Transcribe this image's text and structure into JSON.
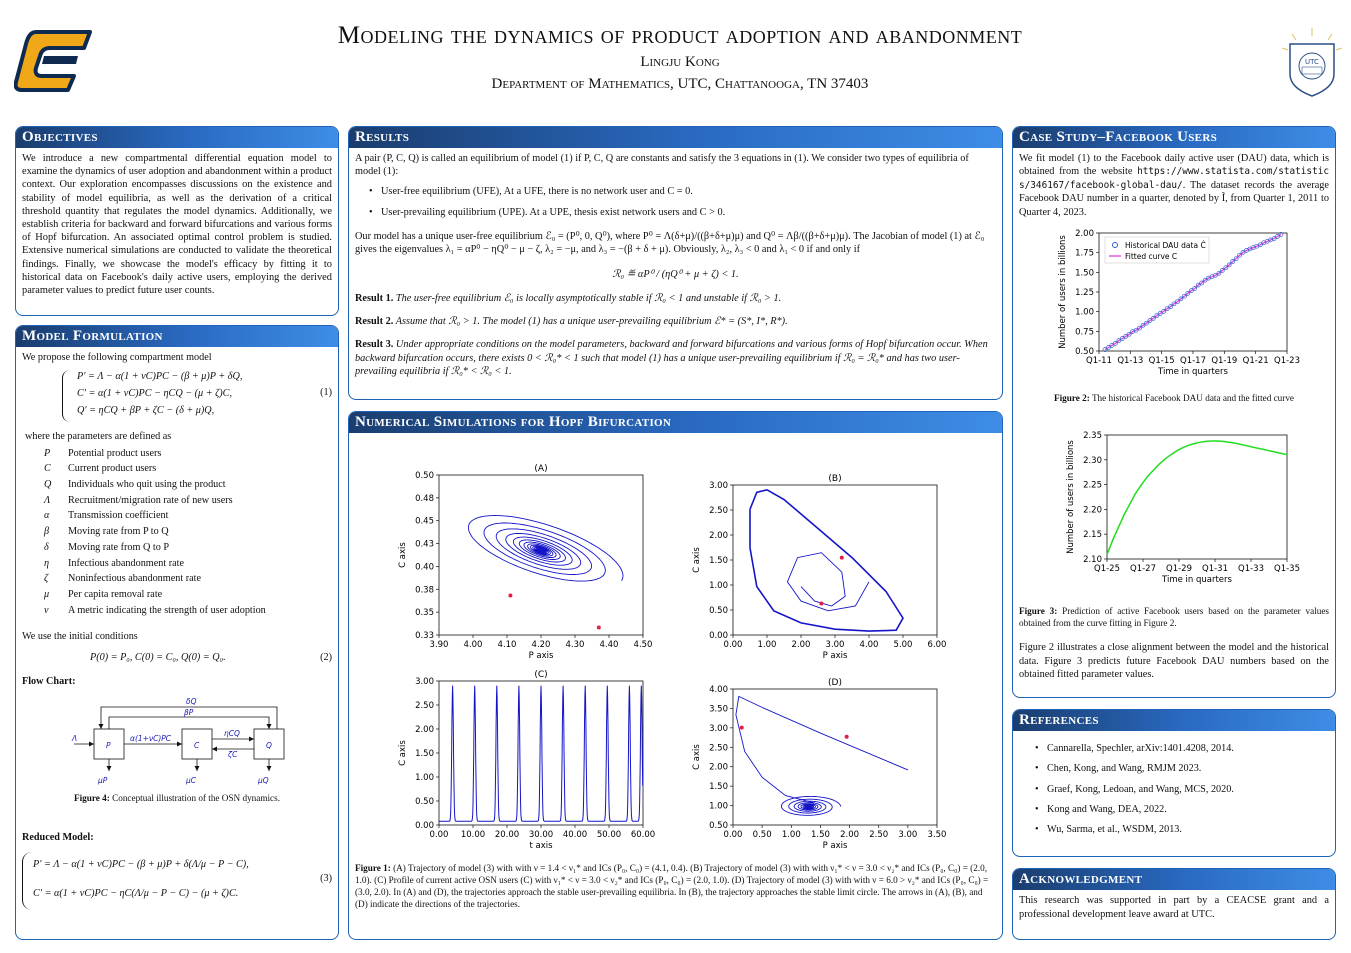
{
  "header": {
    "title": "Modeling the dynamics of product adoption and abandonment",
    "author": "Lingju Kong",
    "department": "Department of Mathematics, UTC, Chattanooga, TN 37403",
    "seal_text": "UTC"
  },
  "objectives": {
    "heading": "Objectives",
    "text": "We introduce a new compartmental differential equation model to examine the dynamics of user adoption and abandonment within a product context. Our exploration encompasses discussions on the existence and stability of model equilibria, as well as the derivation of a critical threshold quantity that regulates the model dynamics. Additionally, we establish criteria for backward and forward bifurcations and various forms of Hopf bifurcation. An associated optimal control problem is studied. Extensive numerical simulations are conducted to validate the theoretical findings. Finally, we showcase the model's efficacy by fitting it to historical data on Facebook's daily active users, employing the derived parameter values to predict future user counts."
  },
  "model": {
    "heading": "Model Formulation",
    "intro": "We propose the following compartment model",
    "eq1_lines": [
      "P′ = Λ − α(1 + νC)PC − (β + μ)P + δQ,",
      "C′ = α(1 + νC)PC − ηCQ − (μ + ζ)C,",
      "Q′ = ηCQ + βP + ζC − (δ + μ)Q,"
    ],
    "eq1_num": "(1)",
    "params_intro": "where the parameters are defined as",
    "params": [
      {
        "sym": "P",
        "desc": "Potential product users"
      },
      {
        "sym": "C",
        "desc": "Current product users"
      },
      {
        "sym": "Q",
        "desc": "Individuals who quit using the product"
      },
      {
        "sym": "Λ",
        "desc": "Recruitment/migration rate of new users"
      },
      {
        "sym": "α",
        "desc": "Transmission coefficient"
      },
      {
        "sym": "β",
        "desc": "Moving rate from P to Q"
      },
      {
        "sym": "δ",
        "desc": "Moving rate from Q to P"
      },
      {
        "sym": "η",
        "desc": "Infectious abandonment rate"
      },
      {
        "sym": "ζ",
        "desc": "Noninfectious abandonment rate"
      },
      {
        "sym": "μ",
        "desc": "Per capita removal rate"
      },
      {
        "sym": "ν",
        "desc": "A metric indicating the strength of user adoption"
      }
    ],
    "init_intro": "We use the initial conditions",
    "eq2": "P(0) = P₀,  C(0) = C₀,  Q(0) = Q₀.",
    "eq2_num": "(2)",
    "flow_heading": "Flow Chart:",
    "flow": {
      "lambda": "Λ",
      "P": "P",
      "C": "C",
      "Q": "Q",
      "PC": "α(1+νC)PC",
      "CQ": "ηCQ",
      "zC": "ζC",
      "bP": "βP",
      "dQ": "δQ",
      "muP": "μP",
      "muC": "μC",
      "muQ": "μQ"
    },
    "fig4_caption_bold": "Figure 4:",
    "fig4_caption": " Conceptual illustration of the OSN dynamics.",
    "reduced_heading": "Reduced Model:",
    "eq3_line1": "P′ = Λ − α(1 + νC)PC − (β + μ)P + δ(Λ/μ − P − C),",
    "eq3_line2": "C′ = α(1 + νC)PC − ηC(Λ/μ − P − C) − (μ + ζ)C.",
    "eq3_num": "(3)"
  },
  "results": {
    "heading": "Results",
    "p1": "A pair (P, C, Q) is called an equilibrium of model (1) if P, C, Q are constants and satisfy the 3 equations in (1). We consider two types of equilibria of model (1):",
    "bullets": [
      "User-free equilibrium (UFE), At a UFE, there is no network user and C = 0.",
      "User-prevailing equilibrium (UPE). At a UPE, thesis exist network users and C > 0."
    ],
    "p2": "Our model has a unique user-free equilibrium ℰ₀ = (P⁰, 0, Q⁰), where P⁰ = Λ(δ+μ)/((β+δ+μ)μ) and Q⁰ = Λβ/((β+δ+μ)μ). The Jacobian of model (1) at ℰ₀ gives the eigenvalues λ₁ = αP⁰ − ηQ⁰ − μ − ζ, λ₂ = −μ, and λ₃ = −(β + δ + μ). Obviously, λ₂, λ₃ < 0 and λ₁ < 0 if and only if",
    "r0": "ℛ₀ ≝ αP⁰ / (ηQ⁰ + μ + ζ) < 1.",
    "res1_bold": "Result 1.",
    "res1": " The user-free equilibrium ℰ₀ is locally asymptotically stable if ℛ₀ < 1 and unstable if ℛ₀ > 1.",
    "res2_bold": "Result 2.",
    "res2": " Assume that ℛ₀ > 1. The model (1) has a unique user-prevailing equilibrium ℰ* = (S*, I*, R*).",
    "res3_bold": "Result 3.",
    "res3": " Under appropriate conditions on the model parameters, backward and forward bifurcations and various forms of Hopf bifurcation occur. When backward bifurcation occurs, there exists 0 < ℛ₀* < 1 such that model (1) has a unique user-prevailing equilibrium if ℛ₀ = ℛ₀* and has two user-prevailing equilibria if ℛ₀* < ℛ₀ < 1."
  },
  "numerical": {
    "heading": "Numerical Simulations for Hopf Bifurcation",
    "fig1_caption_bold": "Figure 1:",
    "fig1_caption": " (A) Trajectory of model (3) with with ν = 1.4 < ν₁* and ICs (P₀, C₀) = (4.1, 0.4). (B) Trajectory of model (3) with with ν₁* < ν = 3.0 < ν₂* and ICs (P₀, C₀) = (2.0, 1.0). (C) Profile of current active OSN users (C) with ν₁* < ν = 3.0 < ν₂* and ICs (P₀, C₀) = (2.0, 1.0). (D) Trajectory of model (3) with with ν = 6.0 > ν₂* and ICs (P₀, C₀) = (3.0, 2.0). In (A) and (D), the trajectories approach the stable user-prevailing equilibria. In (B), the trajectory approaches the stable limit circle. The arrows in (A), (B), and (D) indicate the directions of the trajectories."
  },
  "case": {
    "heading": "Case Study–Facebook Users",
    "text_before": "We fit model (1) to the Facebook daily active user (DAU) data, which is obtained from the website ",
    "url": "https://www.statista.com/statistics/346167/facebook-global-dau/",
    "text_after": ". The dataset records the average Facebook DAU number in a quarter, denoted by Ĩ, from Quarter 1, 2011 to Quarter 4, 2023.",
    "fig2_caption_bold": "Figure 2:",
    "fig2_caption": " The historical Facebook DAU data and the fitted curve",
    "fig3_caption_bold": "Figure 3:",
    "fig3_caption": " Prediction of active Facebook users based on the parameter values obtained from the curve fitting in Figure 2.",
    "summary": "Figure 2 illustrates a close alignment between the model and the historical data. Figure 3 predicts future Facebook DAU numbers based on the obtained fitted parameter values."
  },
  "references": {
    "heading": "References",
    "items": [
      "Cannarella, Spechler, arXiv:1401.4208, 2014.",
      "Chen, Kong, and Wang, RMJM 2023.",
      "Graef, Kong, Ledoan, and Wang, MCS, 2020.",
      "Kong and Wang, DEA, 2022.",
      "Wu, Sarma, et al., WSDM, 2013."
    ]
  },
  "ack": {
    "heading": "Acknowledgment",
    "text": "This research was supported in part by a CEACSE grant and a professional development leave award at UTC."
  },
  "chart_data": [
    {
      "type": "line",
      "id": "A",
      "title": "(A)",
      "xlabel": "P axis",
      "ylabel": "C axis",
      "xlim": [
        3.9,
        4.5
      ],
      "ylim": [
        0.33,
        0.5
      ],
      "xticks": [
        "3.90",
        "4.00",
        "4.10",
        "4.20",
        "4.30",
        "4.40",
        "4.50"
      ],
      "yticks": [
        "0.33",
        "0.35",
        "0.38",
        "0.40",
        "0.43",
        "0.45",
        "0.48",
        "0.50"
      ],
      "spiral_center": [
        4.2,
        0.42
      ],
      "color": "#1515c8",
      "arrow_color": "#e0204a"
    },
    {
      "type": "line",
      "id": "B",
      "title": "(B)",
      "xlabel": "P axis",
      "ylabel": "C axis",
      "xlim": [
        0,
        6
      ],
      "ylim": [
        0,
        3.1
      ],
      "xticks": [
        "0.00",
        "1.00",
        "2.00",
        "3.00",
        "4.00",
        "5.00",
        "6.00"
      ],
      "yticks": [
        "0.00",
        "0.50",
        "1.00",
        "1.50",
        "2.00",
        "2.50",
        "3.00"
      ],
      "color": "#1515c8",
      "arrow_color": "#e0204a"
    },
    {
      "type": "line",
      "id": "C",
      "title": "(C)",
      "xlabel": "t axis",
      "ylabel": "C axis",
      "xlim": [
        0,
        60
      ],
      "ylim": [
        0,
        3.1
      ],
      "xticks": [
        "0.00",
        "10.00",
        "20.00",
        "30.00",
        "40.00",
        "50.00",
        "60.00"
      ],
      "yticks": [
        "0.00",
        "0.50",
        "1.00",
        "1.50",
        "2.00",
        "2.50",
        "3.00"
      ],
      "peaks_t": [
        4,
        10.5,
        17,
        23.5,
        30,
        36.5,
        43,
        49.5,
        56,
        59.5
      ],
      "color": "#1515c8"
    },
    {
      "type": "line",
      "id": "D",
      "title": "(D)",
      "xlabel": "P axis",
      "ylabel": "C axis",
      "xlim": [
        0,
        3.5
      ],
      "ylim": [
        0.5,
        4.2
      ],
      "xticks": [
        "0.00",
        "0.50",
        "1.00",
        "1.50",
        "2.00",
        "2.50",
        "3.00",
        "3.50"
      ],
      "yticks": [
        "0.50",
        "1.00",
        "1.50",
        "2.00",
        "2.50",
        "3.00",
        "3.50",
        "4.00"
      ],
      "color": "#1515c8",
      "arrow_color": "#e0204a"
    },
    {
      "type": "scatter",
      "id": "fig2",
      "xlabel": "Time in quarters",
      "ylabel": "Number of users in billions",
      "xticks": [
        "Q1-11",
        "Q1-13",
        "Q1-15",
        "Q1-17",
        "Q1-19",
        "Q1-21",
        "Q1-23"
      ],
      "yticks": [
        "0.50",
        "0.75",
        "1.00",
        "1.25",
        "1.50",
        "1.75",
        "2.00"
      ],
      "ylim": [
        0.4,
        2.1
      ],
      "legend": [
        "Historical DAU data Ĉ",
        "Fitted curve C"
      ],
      "legend_position": "top-left",
      "series_color_data": "#2d5fd0",
      "series_color_fit": "#e040e0",
      "values": [
        0.42,
        0.45,
        0.48,
        0.51,
        0.55,
        0.58,
        0.61,
        0.64,
        0.68,
        0.7,
        0.73,
        0.77,
        0.8,
        0.84,
        0.87,
        0.91,
        0.94,
        0.97,
        1.01,
        1.04,
        1.08,
        1.11,
        1.15,
        1.19,
        1.23,
        1.27,
        1.3,
        1.35,
        1.38,
        1.42,
        1.45,
        1.47,
        1.49,
        1.52,
        1.56,
        1.6,
        1.64,
        1.69,
        1.73,
        1.78,
        1.82,
        1.85,
        1.87,
        1.89,
        1.91,
        1.93,
        1.96,
        1.98,
        2.0,
        2.02,
        2.05,
        2.08
      ]
    },
    {
      "type": "line",
      "id": "fig3",
      "xlabel": "Time in quarters",
      "ylabel": "Number of users in billions",
      "xticks": [
        "Q1-25",
        "Q1-27",
        "Q1-29",
        "Q1-31",
        "Q1-33",
        "Q1-35"
      ],
      "yticks": [
        "2.10",
        "2.15",
        "2.20",
        "2.25",
        "2.30",
        "2.35"
      ],
      "ylim": [
        2.09,
        2.38
      ],
      "values": [
        2.1,
        2.135,
        2.165,
        2.195,
        2.22,
        2.245,
        2.265,
        2.283,
        2.298,
        2.312,
        2.324,
        2.334,
        2.343,
        2.35,
        2.356,
        2.36,
        2.363,
        2.365,
        2.366,
        2.366,
        2.365,
        2.363,
        2.361,
        2.358,
        2.355,
        2.352,
        2.349,
        2.346,
        2.343,
        2.34,
        2.337,
        2.334
      ],
      "color": "#22dd22"
    }
  ]
}
